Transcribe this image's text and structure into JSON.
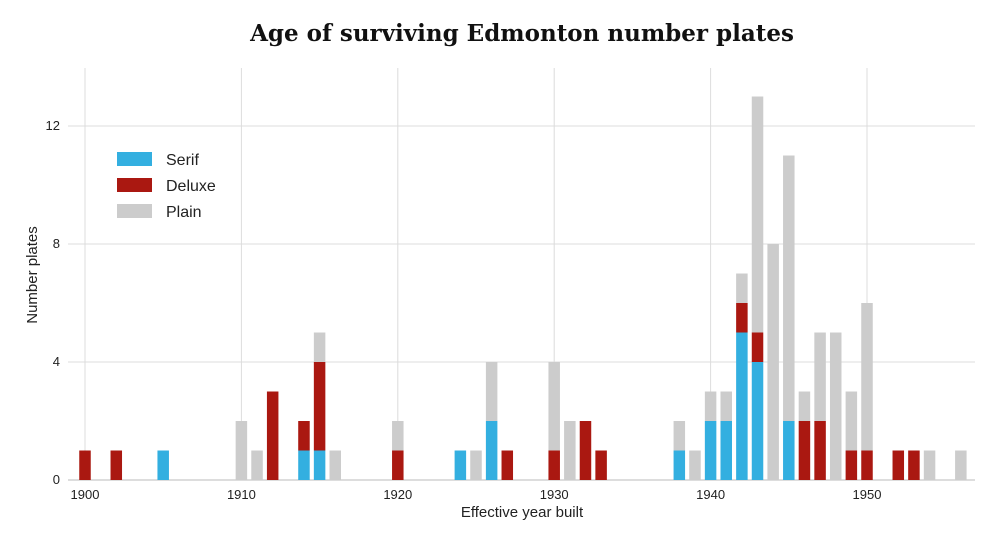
{
  "chart_data": {
    "type": "bar",
    "stacked": true,
    "title": "Age of surviving Edmonton number plates",
    "xlabel": "Effective year built",
    "ylabel": "Number plates",
    "xlim": [
      1899,
      1957
    ],
    "ylim": [
      0,
      13.5
    ],
    "x_ticks": [
      1900,
      1910,
      1920,
      1930,
      1940,
      1950
    ],
    "y_ticks": [
      0,
      4,
      8,
      12
    ],
    "grid": true,
    "legend_position": "top-left",
    "series": [
      {
        "name": "Serif",
        "color": "#33afe0",
        "data": [
          [
            1905,
            1
          ],
          [
            1914,
            1
          ],
          [
            1915,
            1
          ],
          [
            1924,
            1
          ],
          [
            1926,
            2
          ],
          [
            1938,
            1
          ],
          [
            1940,
            2
          ],
          [
            1941,
            2
          ],
          [
            1942,
            5
          ],
          [
            1943,
            4
          ],
          [
            1945,
            2
          ]
        ]
      },
      {
        "name": "Deluxe",
        "color": "#aa1811",
        "data": [
          [
            1900,
            1
          ],
          [
            1902,
            1
          ],
          [
            1912,
            3
          ],
          [
            1914,
            1
          ],
          [
            1915,
            3
          ],
          [
            1920,
            1
          ],
          [
            1927,
            1
          ],
          [
            1930,
            1
          ],
          [
            1932,
            2
          ],
          [
            1933,
            1
          ],
          [
            1942,
            1
          ],
          [
            1943,
            1
          ],
          [
            1946,
            2
          ],
          [
            1947,
            2
          ],
          [
            1949,
            1
          ],
          [
            1950,
            1
          ],
          [
            1952,
            1
          ],
          [
            1953,
            1
          ]
        ]
      },
      {
        "name": "Plain",
        "color": "#cccccc",
        "data": [
          [
            1910,
            2
          ],
          [
            1911,
            1
          ],
          [
            1915,
            1
          ],
          [
            1916,
            1
          ],
          [
            1920,
            1
          ],
          [
            1925,
            1
          ],
          [
            1926,
            2
          ],
          [
            1930,
            3
          ],
          [
            1931,
            2
          ],
          [
            1938,
            1
          ],
          [
            1939,
            1
          ],
          [
            1940,
            1
          ],
          [
            1941,
            1
          ],
          [
            1942,
            1
          ],
          [
            1943,
            8
          ],
          [
            1944,
            8
          ],
          [
            1945,
            9
          ],
          [
            1946,
            1
          ],
          [
            1947,
            3
          ],
          [
            1948,
            5
          ],
          [
            1949,
            2
          ],
          [
            1950,
            5
          ],
          [
            1954,
            1
          ],
          [
            1956,
            1
          ]
        ]
      }
    ]
  }
}
